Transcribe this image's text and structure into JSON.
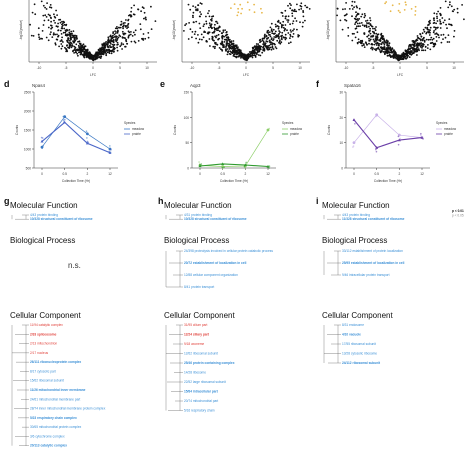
{
  "colors": {
    "meadow": "#3a78c4",
    "prairie": "#4a66c8",
    "panel_e_meadow": "#8ecf6a",
    "panel_e_prairie": "#2f9a2f",
    "panel_f_meadow": "#c8b2e8",
    "panel_f_prairie": "#6b3fa8",
    "term_blue": "#3a8fd6",
    "term_red": "#e0403a",
    "volcano_highlight": "#e8b84a"
  },
  "volcano_panels": [
    {
      "ylabel": "-log10(pvalue)",
      "xlabel": "LFC",
      "xticks": [
        "-10",
        "-5",
        "0",
        "5",
        "10"
      ]
    },
    {
      "ylabel": "-log10(pvalue)",
      "xlabel": "LFC",
      "xticks": [
        "-10",
        "-5",
        "0",
        "5",
        "10"
      ]
    },
    {
      "ylabel": "-log10(pvalue)",
      "xlabel": "LFC",
      "xticks": [
        "-10",
        "-5",
        "0",
        "5",
        "10"
      ]
    }
  ],
  "chart_data": [
    {
      "panel": "d",
      "type": "line",
      "title": "Npas4",
      "xlabel": "Collection Time (Hr)",
      "ylabel": "Counts",
      "x": [
        0,
        0.5,
        2,
        12
      ],
      "ylim": [
        500,
        2500
      ],
      "yticks": [
        500,
        1000,
        1500,
        2000,
        2500
      ],
      "legend_title": "Species",
      "series": [
        {
          "name": "meadow",
          "values": [
            1050,
            1850,
            1400,
            1000
          ]
        },
        {
          "name": "prairie",
          "values": [
            1200,
            1700,
            1150,
            900
          ]
        }
      ]
    },
    {
      "panel": "e",
      "type": "line",
      "title": "Aqp3",
      "xlabel": "Collection Time (Hr)",
      "ylabel": "Counts",
      "x": [
        0,
        0.5,
        2,
        12
      ],
      "ylim": [
        0,
        150
      ],
      "yticks": [
        0,
        50,
        100,
        150
      ],
      "legend_title": "Species",
      "series": [
        {
          "name": "meadow",
          "values": [
            5,
            3,
            4,
            75
          ]
        },
        {
          "name": "prairie",
          "values": [
            4,
            8,
            6,
            3
          ]
        }
      ]
    },
    {
      "panel": "f",
      "type": "line",
      "title": "Spata16",
      "xlabel": "Collection Time (Hr)",
      "ylabel": "Counts",
      "x": [
        0,
        0.5,
        2,
        12
      ],
      "ylim": [
        0,
        30
      ],
      "yticks": [
        0,
        10,
        20,
        30
      ],
      "legend_title": "Species",
      "series": [
        {
          "name": "meadow",
          "values": [
            10,
            21,
            13,
            12
          ]
        },
        {
          "name": "prairie",
          "values": [
            19,
            8,
            11,
            12
          ]
        }
      ]
    }
  ],
  "go_panels": [
    {
      "letter": "g",
      "mf_title": "Molecular Function",
      "mf_terms": [
        {
          "text": "4/43 protein binding",
          "color": "blue"
        },
        {
          "text": "10/328 structural constituent of ribosome",
          "color": "blue"
        }
      ],
      "bp_title": "Biological Process",
      "bp_note": "n.s.",
      "bp_terms": [],
      "cc_title": "Cellular Component",
      "cc_terms": [
        {
          "text": "11/94 catalytic complex",
          "color": "red"
        },
        {
          "text": "2/33 spliceosome",
          "color": "red"
        },
        {
          "text": "2/13 mitochondrion",
          "color": "red"
        },
        {
          "text": "2/17 nucleus",
          "color": "red"
        },
        {
          "text": "26/111 ribonucleoprotein complex",
          "color": "blue"
        },
        {
          "text": "8/17 cytosolic part",
          "color": "blue"
        },
        {
          "text": "15/62 ribosomal subunit",
          "color": "blue"
        },
        {
          "text": "11/26 mitochondrial inner membrane",
          "color": "blue"
        },
        {
          "text": "24/61 mitochondrial membrane part",
          "color": "blue"
        },
        {
          "text": "28/74 inner mitochondrial membrane protein complex",
          "color": "blue"
        },
        {
          "text": "5/23 respiratory chain complex",
          "color": "blue"
        },
        {
          "text": "30/65 mitochondrial protein complex",
          "color": "blue"
        },
        {
          "text": "3/6 cytochrome complex",
          "color": "blue"
        },
        {
          "text": "20/113 catalytic complex",
          "color": "blue"
        }
      ]
    },
    {
      "letter": "h",
      "mf_title": "Molecular Function",
      "mf_terms": [
        {
          "text": "4/31 protein binding",
          "color": "blue"
        },
        {
          "text": "10/328 structural constituent of ribosome",
          "color": "blue"
        }
      ],
      "bp_title": "Biological Process",
      "bp_note": "",
      "bp_terms": [
        {
          "text": "24/398 proteolysis involved in cellular protein catabolic process",
          "color": "blue"
        },
        {
          "text": "20/72 establishment of localization in cell",
          "color": "blue"
        },
        {
          "text": "12/88 cellular component organization",
          "color": "blue"
        },
        {
          "text": "8/41 protein transport",
          "color": "blue"
        }
      ],
      "cc_title": "Cellular Component",
      "cc_terms": [
        {
          "text": "31/95 cilium part",
          "color": "red"
        },
        {
          "text": "12/24 ciliary part",
          "color": "red"
        },
        {
          "text": "9/18 axoneme",
          "color": "red"
        },
        {
          "text": "12/62 ribosomal subunit",
          "color": "blue"
        },
        {
          "text": "25/46 protein containing complex",
          "color": "blue"
        },
        {
          "text": "14/28 ribosome",
          "color": "blue"
        },
        {
          "text": "22/52 large ribosomal subunit",
          "color": "blue"
        },
        {
          "text": "15/84 intracellular part",
          "color": "blue"
        },
        {
          "text": "20/74 mitochondrial part",
          "color": "blue"
        },
        {
          "text": "5/16 respiratory chain",
          "color": "blue"
        }
      ]
    },
    {
      "letter": "i",
      "mf_title": "Molecular Function",
      "mf_terms": [
        {
          "text": "4/43 protein binding",
          "color": "blue"
        },
        {
          "text": "11/328 structural constituent of ribosome",
          "color": "blue"
        }
      ],
      "bp_title": "Biological Process",
      "bp_note": "",
      "bp_terms": [
        {
          "text": "33/112 establishment of protein localization",
          "color": "blue"
        },
        {
          "text": "25/95 establishment of localization in cell",
          "color": "blue"
        },
        {
          "text": "9/46 intracellular protein transport",
          "color": "blue"
        }
      ],
      "cc_title": "Cellular Component",
      "cc_terms": [
        {
          "text": "8/31 endosome",
          "color": "blue"
        },
        {
          "text": "4/10 vacuole",
          "color": "blue"
        },
        {
          "text": "17/55 ribosomal subunit",
          "color": "blue"
        },
        {
          "text": "13/28 cytosolic ribosome",
          "color": "blue"
        },
        {
          "text": "24/112 ribosomal subunit",
          "color": "blue"
        }
      ],
      "legend": [
        "p < 0.01",
        "p < 0.05"
      ]
    }
  ],
  "panel_letters": [
    "d",
    "e",
    "f",
    "g",
    "h",
    "i"
  ]
}
